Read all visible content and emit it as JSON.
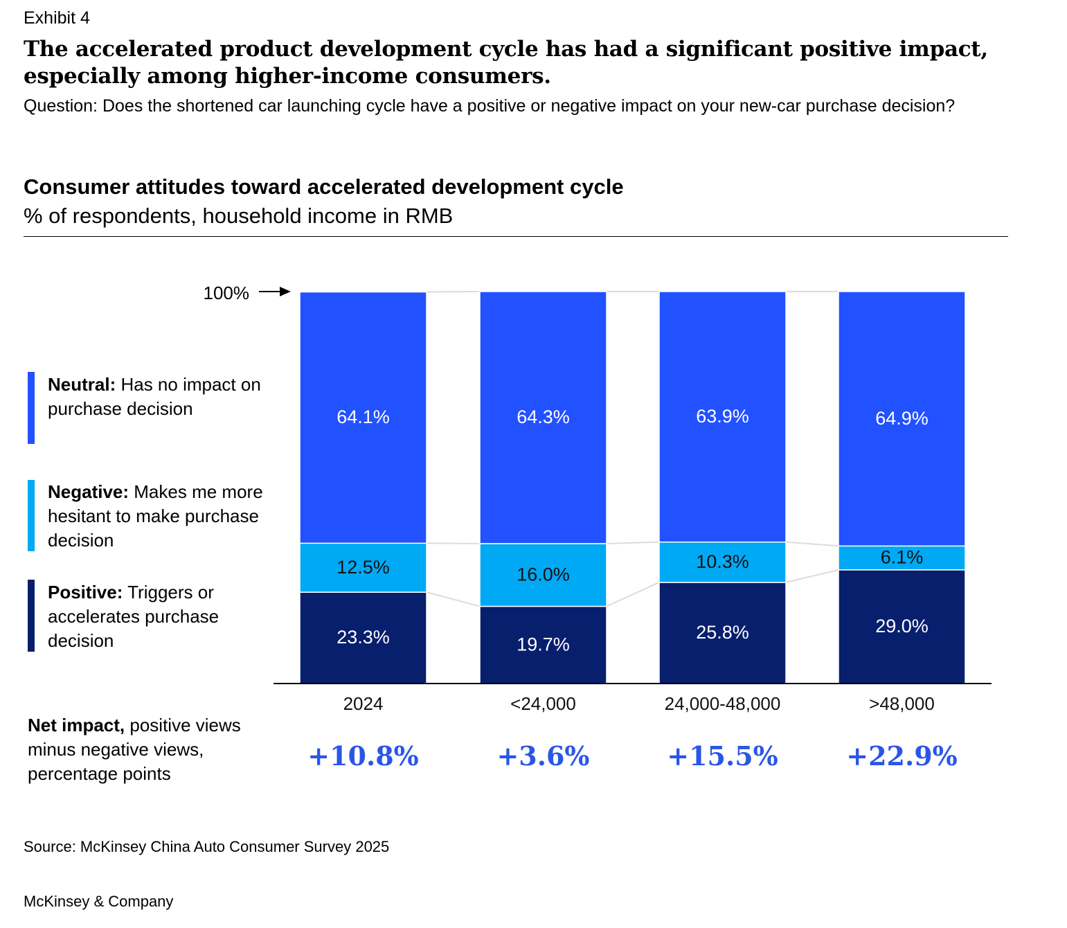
{
  "header": {
    "exhibit": "Exhibit 4",
    "title": "The accelerated product development cycle has had a significant positive impact, especially among higher-income consumers.",
    "question": "Question: Does the shortened car launching cycle have a positive or negative impact on your new-car purchase decision?"
  },
  "legend": [
    {
      "key": "Neutral:",
      "text": " Has no impact on purchase decision",
      "color": "#2251FF"
    },
    {
      "key": "Negative:",
      "text": " Makes me more hesitant to make purchase decision",
      "color": "#00A9F4"
    },
    {
      "key": "Positive:",
      "text": " Triggers or accelerates purchase decision",
      "color": "#081F6E"
    }
  ],
  "net_impact_label": {
    "bold": "Net impact,",
    "text": " positive views minus negative views, percentage points"
  },
  "chart_data": {
    "type": "bar",
    "stacked": true,
    "title": "Consumer attitudes toward accelerated development cycle",
    "subtitle": "% of respondents, household income in RMB",
    "reference_label": "100%",
    "ylim": [
      0,
      100
    ],
    "grid": false,
    "legend_placement": "left",
    "categories": [
      "2024",
      "<24,000",
      "24,000-48,000",
      ">48,000"
    ],
    "series": [
      {
        "name": "Positive",
        "color": "#081F6E",
        "label_color": "#FFFFFF",
        "values": [
          23.3,
          19.7,
          25.8,
          29.0
        ],
        "labels": [
          "23.3%",
          "19.7%",
          "25.8%",
          "29.0%"
        ]
      },
      {
        "name": "Negative",
        "color": "#00A9F4",
        "label_color": "#111111",
        "values": [
          12.5,
          16.0,
          10.3,
          6.1
        ],
        "labels": [
          "12.5%",
          "16.0%",
          "10.3%",
          "6.1%"
        ]
      },
      {
        "name": "Neutral",
        "color": "#2251FF",
        "label_color": "#FFFFFF",
        "values": [
          64.1,
          64.3,
          63.9,
          64.9
        ],
        "labels": [
          "64.1%",
          "64.3%",
          "63.9%",
          "64.9%"
        ]
      }
    ],
    "net_impact": [
      "+10.8%",
      "+3.6%",
      "+15.5%",
      "+22.9%"
    ],
    "net_impact_color": "#2A56E8"
  },
  "footer": {
    "source": "Source: McKinsey China Auto Consumer Survey 2025",
    "brand": "McKinsey & Company"
  }
}
